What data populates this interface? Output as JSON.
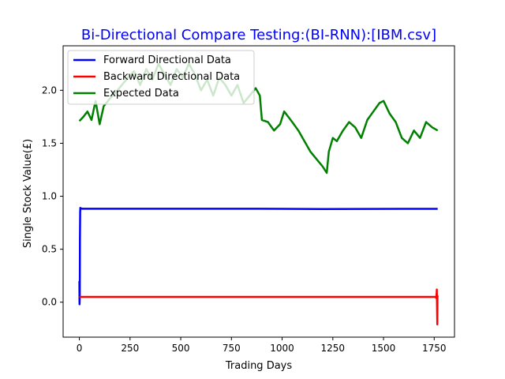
{
  "chart_data": {
    "type": "line",
    "title": "Bi-Directional Compare Testing:(BI-RNN):[IBM.csv]",
    "xlabel": "Trading Days",
    "ylabel": "Single Stock Value(£)",
    "xlim": [
      -80,
      1850
    ],
    "ylim": [
      -0.33,
      2.42
    ],
    "xticks": [
      0,
      250,
      500,
      750,
      1000,
      1250,
      1500,
      1750
    ],
    "yticks": [
      0.0,
      0.5,
      1.0,
      1.5,
      2.0
    ],
    "xtick_labels": [
      "0",
      "250",
      "500",
      "750",
      "1000",
      "1250",
      "1500",
      "1750"
    ],
    "ytick_labels": [
      "0.0",
      "0.5",
      "1.0",
      "1.5",
      "2.0"
    ],
    "legend_position": "top-left",
    "grid": false,
    "series": [
      {
        "name": "Forward Directional Data",
        "color": "#0000ff",
        "x": [
          0,
          1,
          2,
          3,
          4,
          5,
          8,
          15,
          50,
          200,
          400,
          600,
          880,
          1000,
          1200,
          1400,
          1600,
          1767
        ],
        "y": [
          0.2,
          -0.02,
          0.05,
          0.6,
          0.85,
          0.89,
          0.885,
          0.882,
          0.882,
          0.882,
          0.882,
          0.882,
          0.882,
          0.881,
          0.879,
          0.88,
          0.881,
          0.881
        ]
      },
      {
        "name": "Backward Directional Data",
        "color": "#ff0000",
        "x": [
          0,
          10,
          200,
          400,
          600,
          800,
          1000,
          1200,
          1400,
          1600,
          1755,
          1760,
          1762,
          1763,
          1764,
          1765,
          1766,
          1767
        ],
        "y": [
          0.05,
          0.05,
          0.05,
          0.05,
          0.05,
          0.05,
          0.05,
          0.05,
          0.05,
          0.05,
          0.05,
          0.04,
          0.09,
          0.12,
          -0.05,
          -0.21,
          0.06,
          0.05
        ]
      },
      {
        "name": "Expected Data",
        "color": "#008000",
        "x": [
          0,
          20,
          40,
          60,
          80,
          100,
          120,
          150,
          180,
          210,
          240,
          270,
          300,
          330,
          360,
          390,
          420,
          450,
          480,
          510,
          540,
          570,
          600,
          630,
          660,
          690,
          720,
          750,
          780,
          810,
          840,
          870,
          890,
          900,
          930,
          960,
          990,
          1010,
          1030,
          1050,
          1080,
          1110,
          1140,
          1170,
          1200,
          1220,
          1230,
          1250,
          1270,
          1300,
          1330,
          1360,
          1390,
          1420,
          1450,
          1480,
          1500,
          1530,
          1560,
          1590,
          1620,
          1650,
          1680,
          1710,
          1740,
          1767
        ],
        "y": [
          1.71,
          1.75,
          1.8,
          1.72,
          1.9,
          1.68,
          1.85,
          1.92,
          1.98,
          2.05,
          2.12,
          2.18,
          2.05,
          2.2,
          2.1,
          2.25,
          2.15,
          2.05,
          2.2,
          2.12,
          2.25,
          2.15,
          2.0,
          2.1,
          1.95,
          2.12,
          2.05,
          1.95,
          2.05,
          1.88,
          1.95,
          2.02,
          1.95,
          1.72,
          1.7,
          1.62,
          1.68,
          1.8,
          1.75,
          1.7,
          1.62,
          1.52,
          1.42,
          1.35,
          1.28,
          1.22,
          1.42,
          1.55,
          1.52,
          1.62,
          1.7,
          1.65,
          1.55,
          1.72,
          1.8,
          1.88,
          1.9,
          1.78,
          1.7,
          1.55,
          1.5,
          1.62,
          1.55,
          1.7,
          1.65,
          1.62
        ]
      }
    ]
  }
}
